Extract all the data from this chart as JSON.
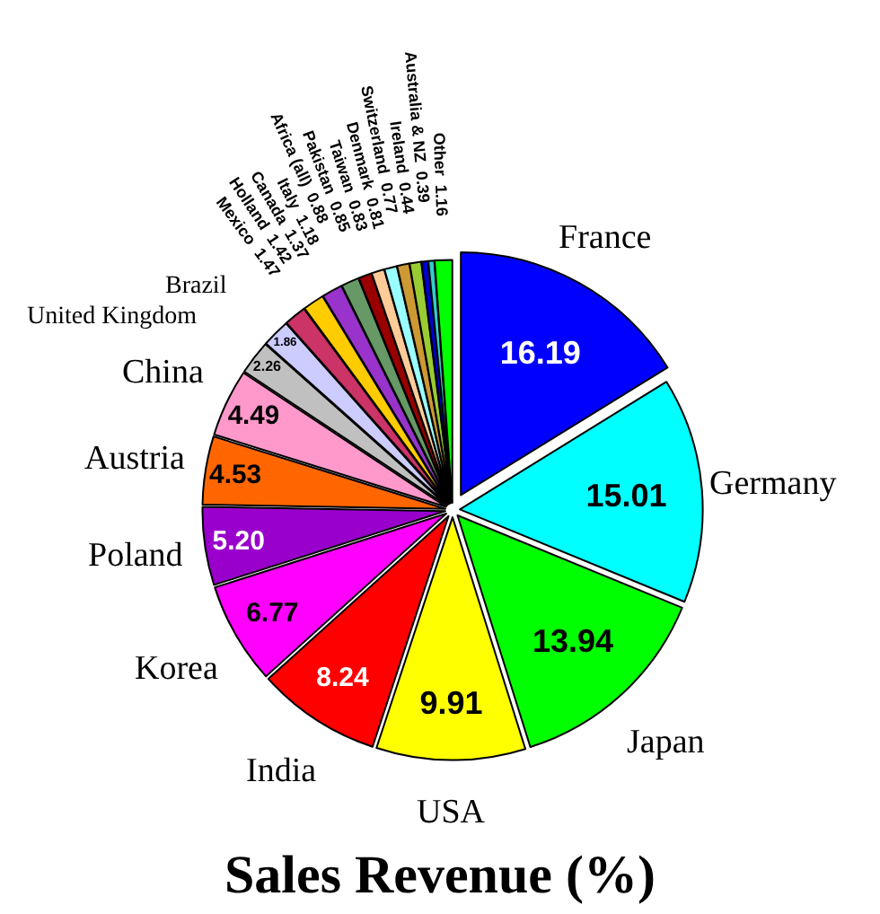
{
  "chart_data": {
    "type": "pie",
    "title": "Sales Revenue (%)",
    "categories": [
      "France",
      "Germany",
      "Japan",
      "USA",
      "India",
      "Korea",
      "Poland",
      "Austria",
      "China",
      "United Kingdom",
      "Brazil",
      "Mexico",
      "Holland",
      "Canada",
      "Italy",
      "Africa (all)",
      "Pakistan",
      "Taiwan",
      "Denmark",
      "Switzerland",
      "Ireland",
      "Australia & NZ",
      "Other"
    ],
    "values": [
      16.19,
      15.01,
      13.94,
      9.91,
      8.24,
      6.77,
      5.2,
      4.53,
      4.49,
      2.26,
      1.86,
      1.47,
      1.42,
      1.37,
      1.18,
      0.88,
      0.85,
      0.83,
      0.81,
      0.77,
      0.44,
      0.39,
      1.16
    ],
    "value_labels": [
      "16.19",
      "15.01",
      "13.94",
      "9.91",
      "8.24",
      "6.77",
      "5.20",
      "4.53",
      "4.49",
      "2.26",
      "1.86",
      "1.47",
      "1.42",
      "1.37",
      "1.18",
      "0.88",
      "0.85",
      "0.83",
      "0.81",
      "0.77",
      "0.44",
      "0.39",
      "1.16"
    ],
    "colors": [
      "#0000ff",
      "#00ffff",
      "#00ff00",
      "#ffff00",
      "#ff0000",
      "#ff00ff",
      "#9900cc",
      "#ff6600",
      "#ff99cc",
      "#c0c0c0",
      "#ccccff",
      "#cc3366",
      "#ffcc00",
      "#9933cc",
      "#669966",
      "#990000",
      "#ffcc99",
      "#99ffff",
      "#cc9933",
      "#99cc33",
      "#0000cc",
      "#33cccc",
      "#00ff00"
    ],
    "legend": false
  }
}
